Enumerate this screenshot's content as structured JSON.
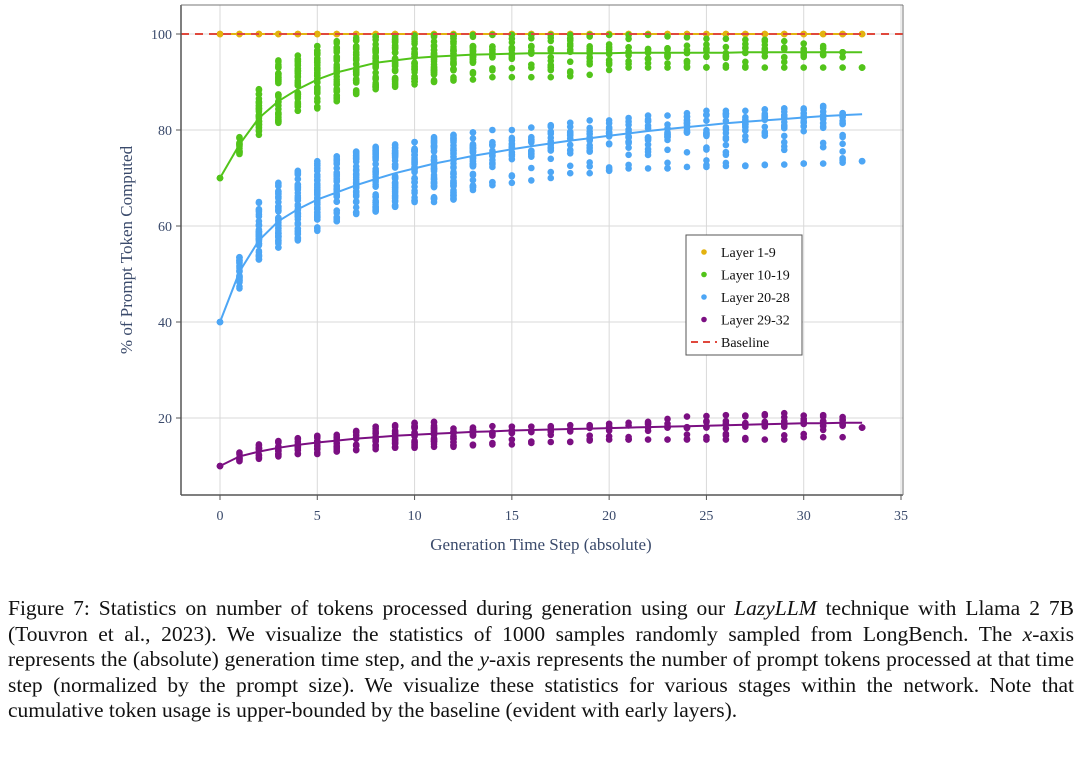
{
  "chart_data": {
    "type": "scatter",
    "title": "",
    "xlabel": "Generation Time Step (absolute)",
    "ylabel": "% of Prompt Token Computed",
    "xlim": [
      -2,
      35
    ],
    "ylim": [
      -4,
      106
    ],
    "xticks": [
      0,
      5,
      10,
      15,
      20,
      25,
      30,
      35
    ],
    "yticks": [
      20,
      40,
      60,
      80,
      100
    ],
    "grid": true,
    "legend_position": "center-right",
    "baseline": {
      "name": "Baseline",
      "value": 100,
      "color": "#e0483c",
      "style": "dashed"
    },
    "series": [
      {
        "name": "Layer 1-9",
        "color": "#e3b20f",
        "x": [
          0,
          1,
          2,
          3,
          4,
          5,
          6,
          7,
          8,
          9,
          10,
          11,
          12,
          13,
          14,
          15,
          16,
          17,
          18,
          19,
          20,
          21,
          22,
          23,
          24,
          25,
          26,
          27,
          28,
          29,
          30,
          31,
          32,
          33
        ],
        "fit": [
          100,
          100,
          100,
          100,
          100,
          100,
          100,
          100,
          100,
          100,
          100,
          100,
          100,
          100,
          100,
          100,
          100,
          100,
          100,
          100,
          100,
          100,
          100,
          100,
          100,
          100,
          100,
          100,
          100,
          100,
          100,
          100,
          100,
          100
        ],
        "min": [
          100,
          100,
          100,
          100,
          100,
          100,
          100,
          100,
          100,
          100,
          100,
          100,
          100,
          100,
          100,
          100,
          100,
          100,
          100,
          100,
          100,
          100,
          100,
          100,
          100,
          100,
          100,
          100,
          100,
          100,
          100,
          100,
          100,
          100
        ],
        "max": [
          100,
          100,
          100,
          100,
          100,
          100,
          100,
          100,
          100,
          100,
          100,
          100,
          100,
          100,
          100,
          100,
          100,
          100,
          100,
          100,
          100,
          100,
          100,
          100,
          100,
          100,
          100,
          100,
          100,
          100,
          100,
          100,
          100,
          100
        ]
      },
      {
        "name": "Layer 10-19",
        "color": "#52c41a",
        "x": [
          0,
          1,
          2,
          3,
          4,
          5,
          6,
          7,
          8,
          9,
          10,
          11,
          12,
          13,
          14,
          15,
          16,
          17,
          18,
          19,
          20,
          21,
          22,
          23,
          24,
          25,
          26,
          27,
          28,
          29,
          30,
          31,
          32,
          33
        ],
        "fit": [
          70,
          77,
          82.5,
          86,
          88.5,
          90.5,
          92,
          93,
          94,
          94.5,
          95,
          95.3,
          95.5,
          95.7,
          95.8,
          95.9,
          96,
          96,
          96,
          96,
          96,
          96.1,
          96.1,
          96.1,
          96.1,
          96.1,
          96.1,
          96.2,
          96.2,
          96.2,
          96.2,
          96.2,
          96.2,
          96.2
        ],
        "min": [
          70,
          75,
          79,
          81.5,
          84,
          84.5,
          86,
          87.5,
          88.5,
          89,
          89.5,
          90,
          90.3,
          90.5,
          91,
          91,
          91,
          91,
          91.2,
          91.5,
          92.5,
          93,
          93,
          93,
          93,
          93,
          93,
          93,
          93,
          93,
          93,
          93,
          93,
          93
        ],
        "max": [
          70,
          78.5,
          88.5,
          94.5,
          95.5,
          97.5,
          98.5,
          99.2,
          99.5,
          99.6,
          99.7,
          99.8,
          99.8,
          99.8,
          99.8,
          99.8,
          99.8,
          99.8,
          99.8,
          99.8,
          99.8,
          99.8,
          99.8,
          99.5,
          99.3,
          99,
          99,
          98.8,
          98.8,
          98.5,
          98,
          97.5,
          96.2,
          93
        ]
      },
      {
        "name": "Layer 20-28",
        "color": "#4da6f5",
        "x": [
          0,
          1,
          2,
          3,
          4,
          5,
          6,
          7,
          8,
          9,
          10,
          11,
          12,
          13,
          14,
          15,
          16,
          17,
          18,
          19,
          20,
          21,
          22,
          23,
          24,
          25,
          26,
          27,
          28,
          29,
          30,
          31,
          32,
          33
        ],
        "fit": [
          40,
          50.5,
          57,
          61,
          63.5,
          65.5,
          67,
          68.5,
          69.8,
          71,
          72,
          73,
          73.8,
          74.6,
          75.3,
          76,
          76.6,
          77.2,
          77.8,
          78.3,
          78.8,
          79.3,
          79.8,
          80.2,
          80.6,
          81,
          81.4,
          81.7,
          82,
          82.3,
          82.6,
          82.9,
          83.1,
          83.3
        ],
        "min": [
          40,
          47,
          53,
          55.5,
          57,
          59,
          61,
          62.5,
          63,
          64,
          65,
          65,
          65.5,
          67.5,
          68.5,
          69,
          69.5,
          70,
          71,
          71,
          71.5,
          72,
          72,
          72,
          72.3,
          72.3,
          72.5,
          72.5,
          72.7,
          72.8,
          73,
          73,
          73.2,
          73.5
        ],
        "max": [
          40,
          53.5,
          65,
          69,
          71.5,
          73.5,
          74.5,
          75.5,
          76.5,
          77,
          77.5,
          78.5,
          79,
          79.5,
          80,
          80,
          80.5,
          81,
          81.5,
          82,
          82,
          82.5,
          83,
          83,
          83.5,
          84,
          84,
          84,
          84.3,
          84.5,
          84.5,
          85,
          83.5,
          73.5
        ]
      },
      {
        "name": "Layer 29-32",
        "color": "#7b0f82",
        "x": [
          0,
          1,
          2,
          3,
          4,
          5,
          6,
          7,
          8,
          9,
          10,
          11,
          12,
          13,
          14,
          15,
          16,
          17,
          18,
          19,
          20,
          21,
          22,
          23,
          24,
          25,
          26,
          27,
          28,
          29,
          30,
          31,
          32,
          33
        ],
        "fit": [
          10,
          12,
          13,
          13.8,
          14.4,
          14.9,
          15.3,
          15.7,
          16,
          16.3,
          16.5,
          16.7,
          16.9,
          17.1,
          17.2,
          17.4,
          17.5,
          17.6,
          17.7,
          17.8,
          17.9,
          18,
          18.1,
          18.2,
          18.3,
          18.4,
          18.5,
          18.6,
          18.7,
          18.8,
          18.9,
          18.9,
          19,
          19
        ],
        "min": [
          10,
          11,
          11.5,
          12,
          12.5,
          12.5,
          13,
          13.3,
          13.5,
          13.8,
          13.8,
          14,
          14,
          14.3,
          14.5,
          14.5,
          14.8,
          15,
          15,
          15.3,
          15.5,
          15.5,
          15.5,
          15.5,
          15.5,
          15.5,
          15.5,
          15.5,
          15.5,
          15.5,
          16,
          16,
          16,
          18
        ],
        "max": [
          10,
          12.8,
          14.5,
          15.2,
          15.8,
          16.3,
          16.5,
          17.3,
          18.2,
          18.5,
          19,
          19.2,
          17.8,
          18,
          18.3,
          18.2,
          18.2,
          18.3,
          18.5,
          18.5,
          18.8,
          19,
          19.2,
          19.8,
          20.3,
          20.4,
          20.6,
          20.5,
          20.8,
          21,
          20.5,
          20.6,
          20.2,
          18
        ]
      }
    ]
  },
  "legend": {
    "items": [
      "Layer 1-9",
      "Layer 10-19",
      "Layer 20-28",
      "Layer 29-32",
      "Baseline"
    ]
  },
  "caption": {
    "prefix": "Figure 7:  Statistics on number of tokens processed during generation using our ",
    "technique": "LazyLLM",
    "rest1": " technique with Llama 2 7B (Touvron et al., 2023).  We visualize the statistics of 1000 samples randomly sampled from LongBench. The ",
    "x_var": "x",
    "rest2": "-axis represents the (absolute) generation time step, and the ",
    "y_var": "y",
    "rest3": "-axis represents the number of prompt tokens processed at that time step (normalized by the prompt size). We visualize these statistics for various stages within the network. Note that cumulative token usage is upper-bounded by the baseline (evident with early layers)."
  }
}
